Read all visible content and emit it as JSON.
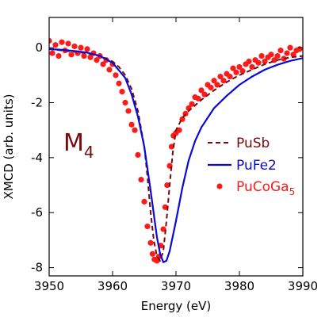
{
  "chart_data": {
    "type": "line",
    "xlabel": "Energy (eV)",
    "ylabel": "XMCD (arb. units)",
    "xlim": [
      3950,
      3990
    ],
    "ylim": [
      -8.3,
      1.1
    ],
    "xticks": [
      3950,
      3960,
      3970,
      3980,
      3990
    ],
    "yticks": [
      0,
      -2,
      -4,
      -6,
      -8
    ],
    "grid": false,
    "legend_position": "right",
    "annotation": {
      "main": "M",
      "sub": "4"
    },
    "series": [
      {
        "name": "PuSb",
        "style": "dashed",
        "color": "#7a0a0a",
        "x": [
          3950,
          3952,
          3954,
          3956,
          3958,
          3960,
          3961,
          3962,
          3963,
          3964,
          3965,
          3965.5,
          3966,
          3966.5,
          3967,
          3967.5,
          3968,
          3968.5,
          3969,
          3969.5,
          3970,
          3971,
          3972,
          3974,
          3976,
          3978,
          3980,
          3982,
          3984,
          3986,
          3988,
          3990
        ],
        "y": [
          -0.05,
          -0.1,
          -0.15,
          -0.2,
          -0.3,
          -0.5,
          -0.7,
          -1.0,
          -1.5,
          -2.3,
          -3.6,
          -4.7,
          -6.0,
          -7.0,
          -7.6,
          -7.75,
          -7.4,
          -6.3,
          -5.0,
          -3.8,
          -3.0,
          -2.55,
          -2.3,
          -1.9,
          -1.55,
          -1.25,
          -1.0,
          -0.8,
          -0.6,
          -0.45,
          -0.35,
          -0.3
        ]
      },
      {
        "name": "PuFe2",
        "style": "solid",
        "color": "#0a0ad4",
        "x": [
          3950,
          3952,
          3954,
          3956,
          3958,
          3960,
          3962,
          3963,
          3964,
          3965,
          3966,
          3967,
          3967.5,
          3968,
          3968.5,
          3969,
          3970,
          3971,
          3972,
          3973,
          3974,
          3976,
          3978,
          3980,
          3982,
          3984,
          3986,
          3988,
          3990
        ],
        "y": [
          -0.05,
          -0.08,
          -0.12,
          -0.18,
          -0.3,
          -0.55,
          -1.1,
          -1.7,
          -2.5,
          -3.6,
          -5.2,
          -6.9,
          -7.5,
          -7.8,
          -7.75,
          -7.4,
          -6.3,
          -5.1,
          -4.1,
          -3.4,
          -2.9,
          -2.2,
          -1.75,
          -1.35,
          -1.05,
          -0.8,
          -0.62,
          -0.48,
          -0.38
        ]
      },
      {
        "name": "PuCoGa",
        "name_subscript": "5",
        "style": "markers",
        "color": "#ff1a1a",
        "x": [
          3950,
          3950.5,
          3951,
          3951.5,
          3952,
          3952.5,
          3953,
          3953.5,
          3954,
          3954.5,
          3955,
          3955.5,
          3956,
          3956.5,
          3957,
          3957.5,
          3958,
          3958.5,
          3959,
          3959.5,
          3960,
          3960.5,
          3961,
          3961.5,
          3962,
          3962.5,
          3963,
          3963.5,
          3964,
          3964.5,
          3965,
          3965.5,
          3966,
          3966.3,
          3966.6,
          3967,
          3967.3,
          3967.6,
          3968,
          3968.3,
          3968.6,
          3969,
          3969.3,
          3969.6,
          3970,
          3970.5,
          3971,
          3971.5,
          3972,
          3972.5,
          3973,
          3973.5,
          3974,
          3974.5,
          3975,
          3975.5,
          3976,
          3976.5,
          3977,
          3977.5,
          3978,
          3978.5,
          3979,
          3979.5,
          3980,
          3980.5,
          3981,
          3981.5,
          3982,
          3982.5,
          3983,
          3983.5,
          3984,
          3984.5,
          3985,
          3985.5,
          3986,
          3986.5,
          3987,
          3987.5,
          3988,
          3988.5,
          3989,
          3989.5
        ],
        "y": [
          0.25,
          -0.2,
          0.1,
          -0.3,
          0.2,
          -0.1,
          0.15,
          -0.25,
          0.05,
          -0.2,
          0.0,
          -0.3,
          -0.05,
          -0.35,
          -0.2,
          -0.45,
          -0.3,
          -0.6,
          -0.45,
          -0.8,
          -0.6,
          -1.0,
          -1.3,
          -1.6,
          -2.0,
          -2.3,
          -2.8,
          -3.0,
          -3.9,
          -4.8,
          -5.6,
          -6.5,
          -7.1,
          -7.5,
          -7.7,
          -7.75,
          -7.6,
          -7.2,
          -6.6,
          -5.8,
          -5.0,
          -4.3,
          -3.6,
          -3.2,
          -3.1,
          -3.0,
          -2.6,
          -2.4,
          -2.2,
          -2.05,
          -1.8,
          -1.85,
          -1.55,
          -1.7,
          -1.35,
          -1.45,
          -1.2,
          -1.35,
          -1.05,
          -1.2,
          -0.95,
          -1.05,
          -0.75,
          -0.9,
          -0.7,
          -0.85,
          -0.6,
          -0.5,
          -0.7,
          -0.45,
          -0.55,
          -0.3,
          -0.5,
          -0.35,
          -0.25,
          -0.45,
          -0.3,
          -0.1,
          -0.4,
          -0.2,
          0.0,
          -0.25,
          -0.1,
          -0.05
        ]
      }
    ]
  }
}
